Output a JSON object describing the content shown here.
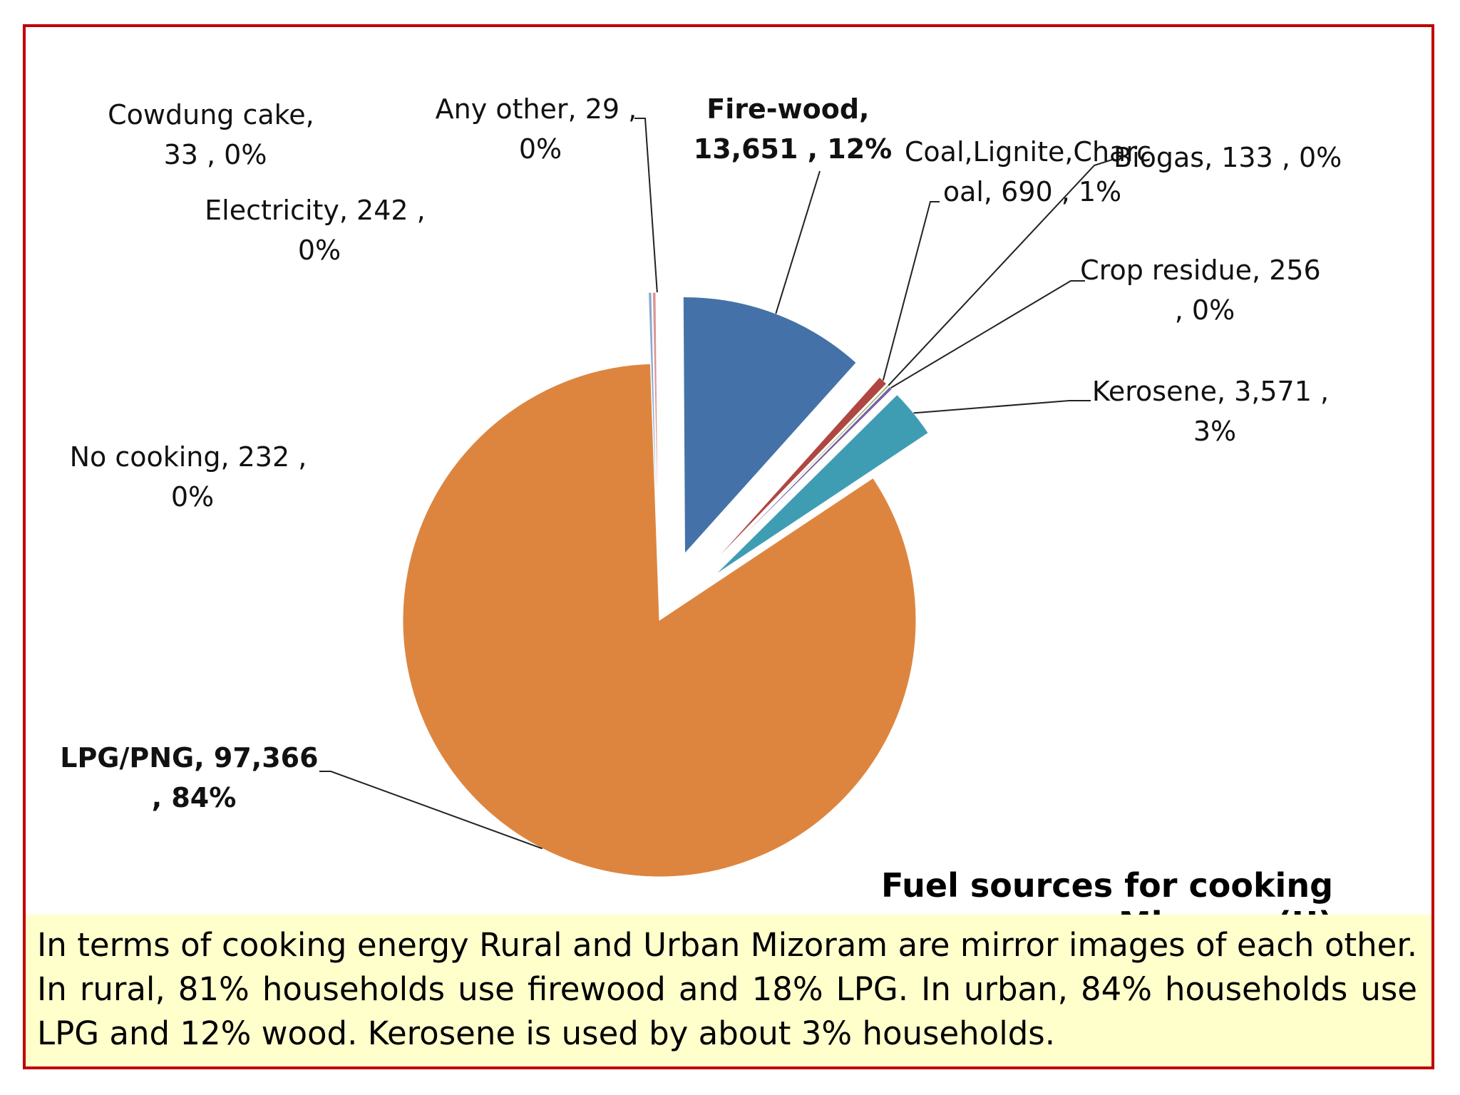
{
  "chart_data": {
    "type": "pie",
    "title": "Fuel sources for cooking Mizoram(U)",
    "slices": [
      {
        "name": "Fire-wood",
        "value": 13651,
        "value_text": "13,651",
        "percent_text": "12%",
        "color": "#4472a8",
        "exploded": true,
        "bold": true
      },
      {
        "name": "Coal,Lignite,Charcoal",
        "label_line1": "Coal,Lignite,Charc",
        "label_line2": "oal,  690 , 1%",
        "value": 690,
        "value_text": "690",
        "percent_text": "1%",
        "color": "#b04642",
        "exploded": true
      },
      {
        "name": "Biogas",
        "value": 133,
        "value_text": "133",
        "percent_text": "0%",
        "color": "#8aa84e",
        "exploded": true
      },
      {
        "name": "Crop residue",
        "value": 256,
        "value_text": "256",
        "percent_text": "0%",
        "color": "#7b5fa5",
        "exploded": true
      },
      {
        "name": "Kerosene",
        "value": 3571,
        "value_text": "3,571",
        "percent_text": "3%",
        "color": "#3f9db3",
        "exploded": true
      },
      {
        "name": "LPG/PNG",
        "value": 97366,
        "value_text": "97,366",
        "percent_text": "84%",
        "color": "#dd853f",
        "exploded": false,
        "bold": true
      },
      {
        "name": "No cooking",
        "value": 232,
        "value_text": "232",
        "percent_text": "0%",
        "color": "#8aa8d2",
        "exploded": true
      },
      {
        "name": "Electricity",
        "value": 242,
        "value_text": "242",
        "percent_text": "0%",
        "color": "#d99694",
        "exploded": true
      },
      {
        "name": "Cowdung cake",
        "value": 33,
        "value_text": "33",
        "percent_text": "0%",
        "color": "#c3d69b",
        "exploded": true
      },
      {
        "name": "Any other",
        "value": 29,
        "value_text": "29",
        "percent_text": "0%",
        "color": "#b3a2c7",
        "exploded": true
      }
    ]
  },
  "labels": {
    "firewood": [
      "Fire-wood,",
      "13,651 , 12%"
    ],
    "coal": [
      "Coal,Lignite,Charc",
      "oal,  690 , 1%"
    ],
    "biogas": [
      "Biogas,  133 , 0%"
    ],
    "crop": [
      "Crop residue,  256",
      ", 0%"
    ],
    "kerosene": [
      "Kerosene,  3,571 ,",
      "3%"
    ],
    "lpg": [
      "LPG/PNG,  97,366",
      ", 84%"
    ],
    "nocooking": [
      "No cooking,  232 ,",
      "0%"
    ],
    "electricity": [
      "Electricity,  242 ,",
      "0%"
    ],
    "cowdung": [
      "Cowdung cake,",
      "33 , 0%"
    ],
    "anyother": [
      "Any other,  29 ,",
      "0%"
    ]
  },
  "caption": "In terms of cooking energy Rural and Urban Mizoram are mirror images of each other. In rural, 81%  households use firewood and 18% LPG. In urban, 84% households use LPG and 12% wood. Kerosene is used by about 3% households.",
  "colors": {
    "frame_border": "#c00000",
    "caption_bg": "#ffffcc"
  }
}
